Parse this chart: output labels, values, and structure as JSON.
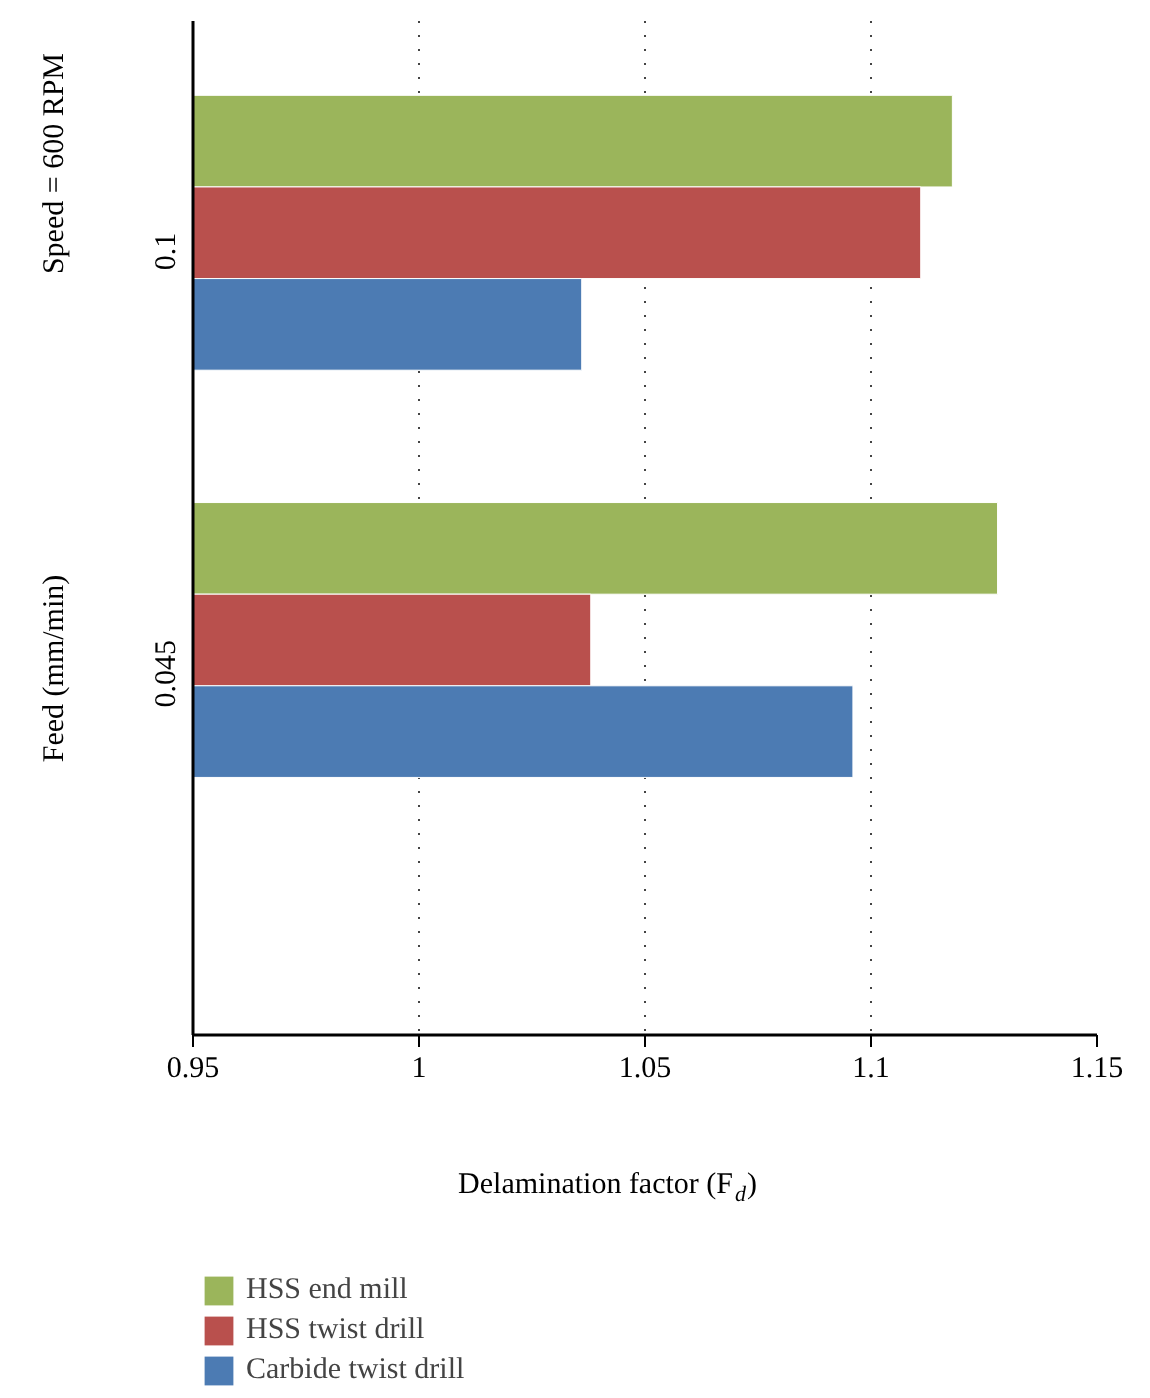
{
  "chart_data": {
    "type": "bar",
    "orientation": "horizontal",
    "categories": [
      "0.1",
      "0.045"
    ],
    "series": [
      {
        "name": "HSS end mill",
        "color": "#9bb55b",
        "values": [
          1.118,
          1.128
        ]
      },
      {
        "name": "HSS twist drill",
        "color": "#b9504d",
        "values": [
          1.111,
          1.038
        ]
      },
      {
        "name": "Carbide twist drill",
        "color": "#4c7bb3",
        "values": [
          1.036,
          1.096
        ]
      }
    ],
    "xlabel": "Delamination factor (F$_{d}$)",
    "ylabel": "Feed (mm/min)",
    "annotations": [
      "Speed = 600 RPM"
    ],
    "xlim": [
      0.95,
      1.15
    ],
    "xticks": [
      0.95,
      1,
      1.05,
      1.1,
      1.15
    ],
    "grid": "x",
    "legend": "bottom"
  }
}
